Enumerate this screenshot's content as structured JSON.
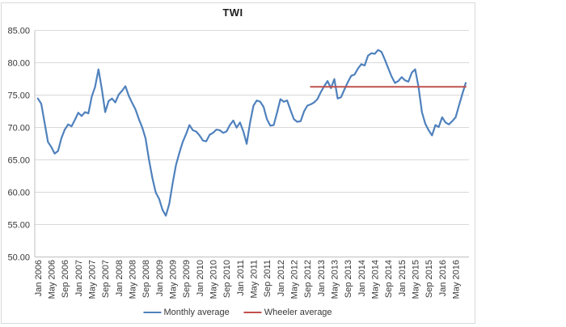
{
  "chart": {
    "title": "TWI",
    "legend": [
      {
        "label": "Monthly average",
        "color": "#4F81BD"
      },
      {
        "label": "Wheeler average",
        "color": "#C0504D"
      }
    ]
  },
  "chart_data": {
    "type": "line",
    "title": "TWI",
    "frequency": "monthly",
    "x_start": "Jan 2006",
    "x_end": "Aug 2016",
    "ylim": [
      50,
      85
    ],
    "grid": true,
    "legend_position": "bottom",
    "y_ticks": [
      50,
      55,
      60,
      65,
      70,
      75,
      80,
      85
    ],
    "y_tick_labels": [
      "50.00",
      "55.00",
      "60.00",
      "65.00",
      "70.00",
      "75.00",
      "80.00",
      "85.00"
    ],
    "x_tick_labels": [
      "Jan 2006",
      "May 2006",
      "Sep 2006",
      "Jan 2007",
      "May 2007",
      "Sep 2007",
      "Jan 2008",
      "May 2008",
      "Sep 2008",
      "Jan 2009",
      "May 2009",
      "Sep 2009",
      "Jan 2010",
      "May 2010",
      "Sep 2010",
      "Jan 2011",
      "May 2011",
      "Sep 2011",
      "Jan 2012",
      "May 2012",
      "Sep 2012",
      "Jan 2013",
      "May 2013",
      "Sep 2013",
      "Jan 2014",
      "May 2014",
      "Sep 2014",
      "Jan 2015",
      "May 2015",
      "Sep 2015",
      "Jan 2016",
      "May 2016"
    ],
    "x_tick_month_step": 4,
    "series": [
      {
        "name": "Monthly average",
        "color": "#4F81BD",
        "values": [
          74.5,
          73.7,
          70.8,
          67.8,
          67.0,
          66.0,
          66.4,
          68.4,
          69.7,
          70.5,
          70.2,
          71.2,
          72.3,
          71.8,
          72.4,
          72.2,
          74.8,
          76.3,
          79.0,
          75.9,
          72.4,
          74.1,
          74.5,
          73.9,
          75.1,
          75.7,
          76.4,
          74.9,
          73.8,
          72.8,
          71.3,
          70.0,
          68.3,
          65.0,
          62.2,
          60.0,
          59.0,
          57.3,
          56.4,
          58.2,
          61.4,
          64.2,
          66.1,
          67.8,
          69.0,
          70.4,
          69.6,
          69.4,
          68.8,
          68.0,
          67.9,
          68.9,
          69.2,
          69.7,
          69.6,
          69.2,
          69.4,
          70.4,
          71.1,
          70.0,
          70.8,
          69.4,
          67.5,
          70.8,
          73.4,
          74.2,
          74.0,
          73.2,
          71.3,
          70.3,
          70.4,
          72.3,
          74.4,
          74.0,
          74.2,
          72.7,
          71.3,
          70.9,
          71.0,
          72.5,
          73.4,
          73.6,
          73.9,
          74.4,
          75.5,
          76.4,
          77.2,
          76.1,
          77.5,
          74.5,
          74.7,
          75.9,
          77.0,
          78.0,
          78.2,
          79.1,
          79.8,
          79.6,
          81.1,
          81.5,
          81.4,
          82.0,
          81.7,
          80.5,
          79.2,
          77.9,
          76.9,
          77.2,
          77.8,
          77.3,
          77.1,
          78.5,
          79.0,
          76.3,
          72.4,
          70.6,
          69.6,
          68.8,
          70.4,
          70.1,
          71.6,
          70.8,
          70.5,
          71.0,
          71.6,
          73.4,
          75.2,
          76.9
        ]
      },
      {
        "name": "Wheeler average",
        "color": "#C0504D",
        "shape": "horizontal_line",
        "value": 76.3,
        "start_month": "Oct 2012",
        "end_month": "Aug 2016",
        "start_index": 81,
        "end_index": 127
      }
    ]
  }
}
